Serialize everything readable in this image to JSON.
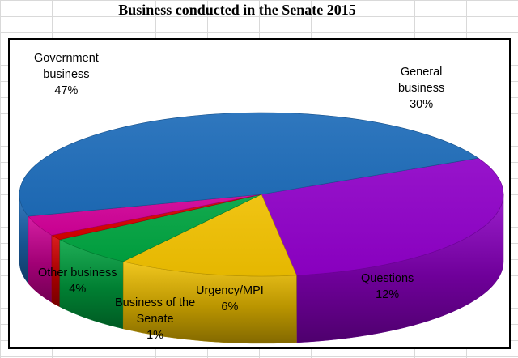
{
  "chart_data": {
    "type": "pie",
    "title": "Business conducted in the Senate 2015",
    "three_d": true,
    "legend": "none",
    "slices": [
      {
        "name_lines": [
          "General",
          "business"
        ],
        "value": 30,
        "label": "30%",
        "color": "#8E00C6"
      },
      {
        "name_lines": [
          "Questions"
        ],
        "value": 12,
        "label": "12%",
        "color": "#EFBF00"
      },
      {
        "name_lines": [
          "Urgency/MPI"
        ],
        "value": 6,
        "label": "6%",
        "color": "#00A340"
      },
      {
        "name_lines": [
          "Business of the",
          "Senate"
        ],
        "value": 1,
        "label": "1%",
        "color": "#D50000"
      },
      {
        "name_lines": [
          "Other business"
        ],
        "value": 4,
        "label": "4%",
        "color": "#CF0096"
      },
      {
        "name_lines": [
          "Government",
          "business"
        ],
        "value": 47,
        "label": "47%",
        "color": "#1D6BB8"
      }
    ]
  }
}
